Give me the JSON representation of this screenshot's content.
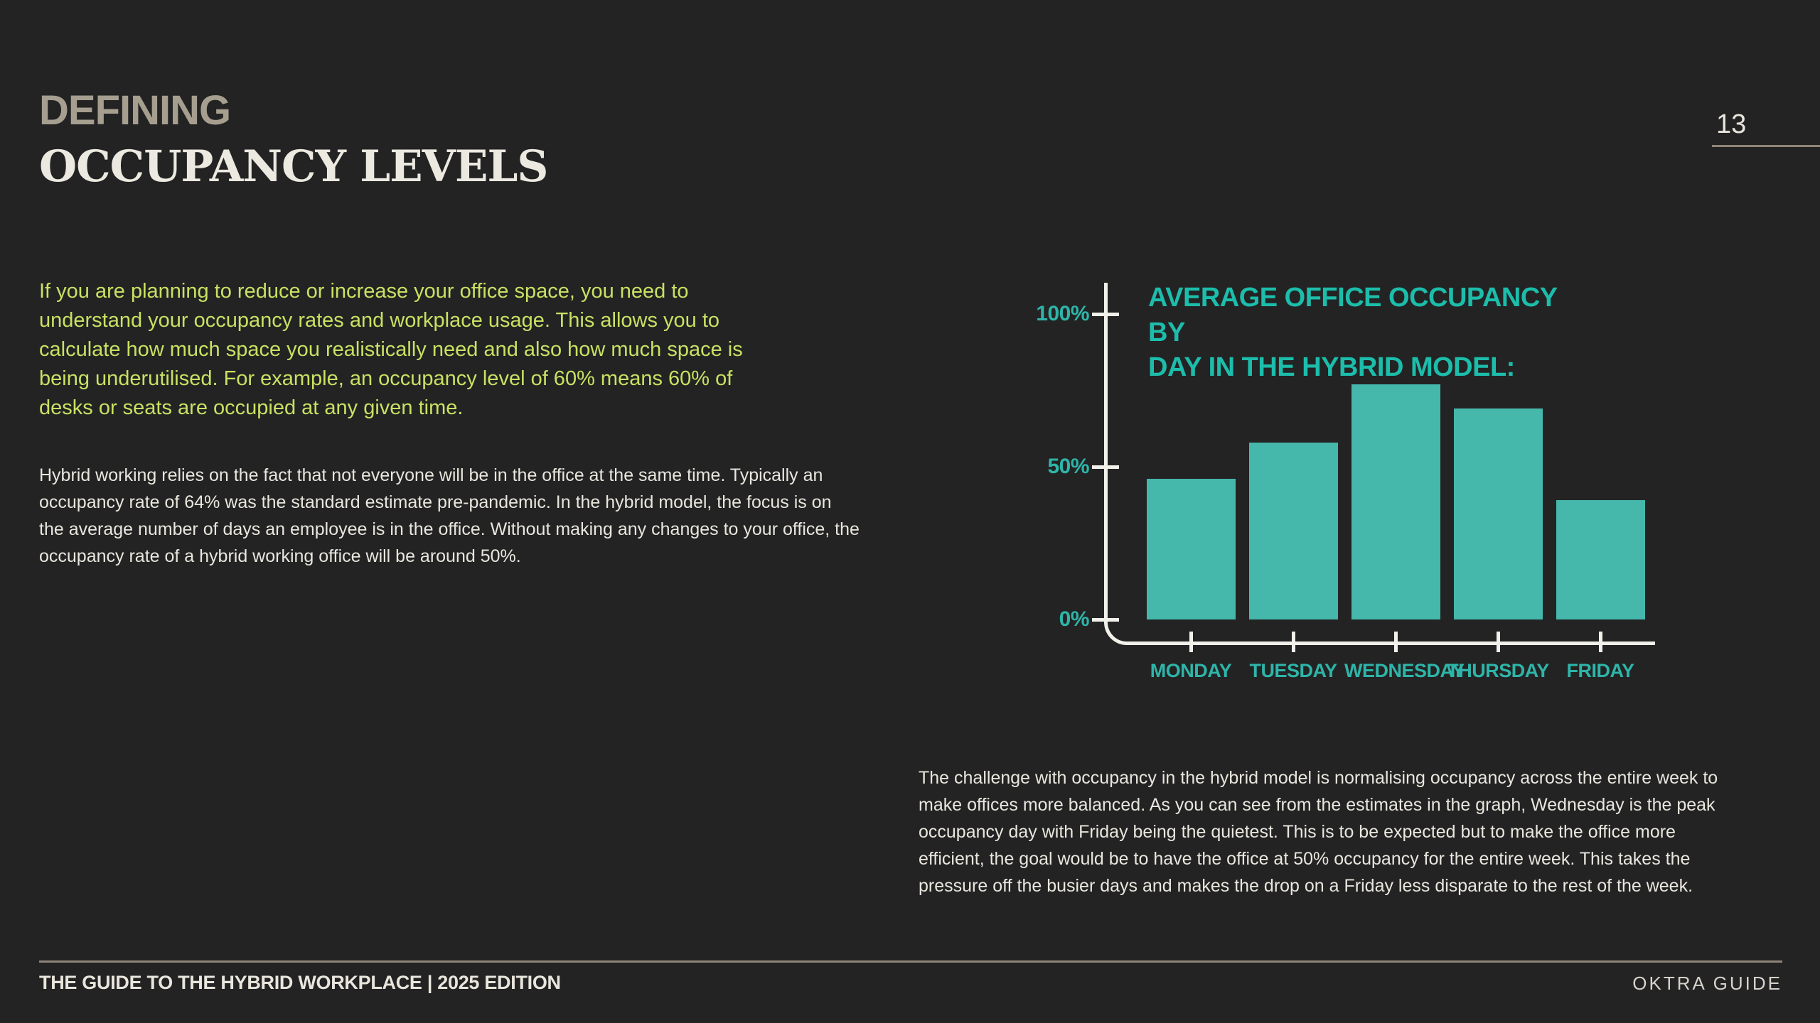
{
  "page": {
    "number": "13",
    "title_line1": "DEFINING",
    "title_line2": "OCCUPANCY LEVELS"
  },
  "intro": {
    "highlight_paragraph": "If you are planning to reduce or increase your office space, you need to\nunderstand your occupancy rates and workplace usage. This allows you to\ncalculate how much space you realistically need and also how much space is\nbeing underutilised. For example, an occupancy level of 60% means 60% of\ndesks or seats are occupied at any given time.",
    "body_paragraph": "Hybrid working relies on the fact that not everyone will be in the office at the same time. Typically an\noccupancy rate of 64% was the standard estimate pre-pandemic. In the hybrid model, the focus is on\nthe average number of days an employee is in the office. Without making any changes to your office, the\noccupancy rate of a hybrid working office will be around 50%."
  },
  "chart": {
    "title_lines": "AVERAGE OFFICE OCCUPANCY BY\nDAY IN THE HYBRID MODEL:"
  },
  "chart_data": {
    "type": "bar",
    "title": "AVERAGE OFFICE OCCUPANCY BY DAY IN THE HYBRID MODEL:",
    "categories": [
      "MONDAY",
      "TUESDAY",
      "WEDNESDAY",
      "THURSDAY",
      "FRIDAY"
    ],
    "values": [
      46,
      58,
      77,
      69,
      39
    ],
    "xlabel": "",
    "ylabel": "",
    "ylim": [
      0,
      100
    ],
    "y_tick_values": [
      0,
      50,
      100
    ],
    "y_tick_labels": [
      "0%",
      "50%",
      "100%"
    ],
    "grid": false,
    "legend": false
  },
  "analysis": {
    "paragraph": "The challenge with occupancy in the hybrid model is normalising occupancy across the entire week to\nmake offices more balanced. As you can see from the estimates in the graph, Wednesday is the peak\noccupancy day with Friday being the quietest. This is to be expected but to make the office more\nefficient, the goal would be to have the office at 50% occupancy for the entire week. This takes the\npressure off the busier days and makes the drop on a Friday less disparate to the rest of the week.",
    "goal_occupancy": "50%"
  },
  "footer": {
    "left": "THE GUIDE TO THE HYBRID WORKPLACE | 2025 EDITION",
    "right": "OKTRA GUIDE"
  },
  "colors": {
    "background": "#232323",
    "teal_title": "#1cbdab",
    "teal_labels": "#2eb5a9",
    "bar_fill": "#45b7ab",
    "highlight_green": "#c8e163",
    "tan_heading": "#a69e8f",
    "off_white": "#e9e6de",
    "rule_tan": "#8e8678",
    "axis_white": "#f2f0ea"
  }
}
